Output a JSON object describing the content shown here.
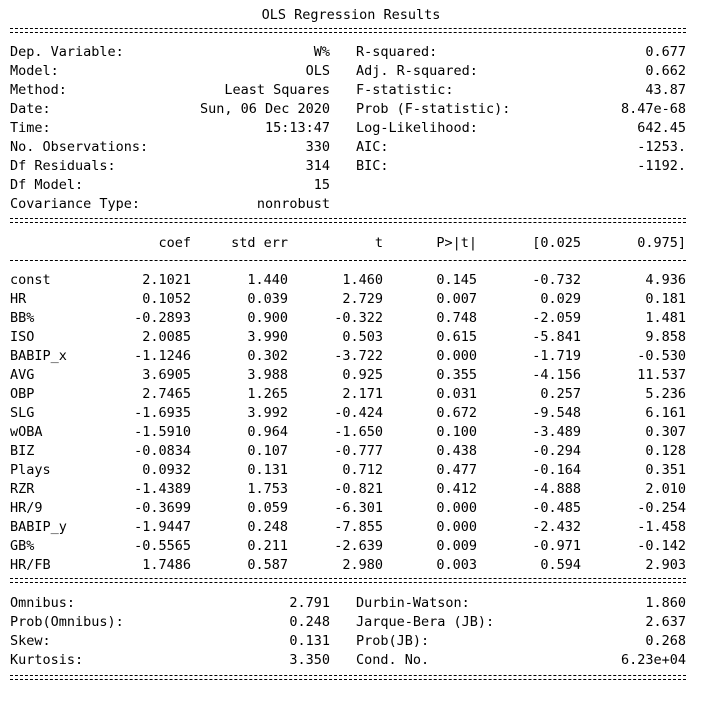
{
  "title": "OLS Regression Results",
  "summary_left": [
    {
      "label": "Dep. Variable:",
      "value": "W%"
    },
    {
      "label": "Model:",
      "value": "OLS"
    },
    {
      "label": "Method:",
      "value": "Least Squares"
    },
    {
      "label": "Date:",
      "value": "Sun, 06 Dec 2020"
    },
    {
      "label": "Time:",
      "value": "15:13:47"
    },
    {
      "label": "No. Observations:",
      "value": "330"
    },
    {
      "label": "Df Residuals:",
      "value": "314"
    },
    {
      "label": "Df Model:",
      "value": "15"
    },
    {
      "label": "Covariance Type:",
      "value": "nonrobust"
    }
  ],
  "summary_right": [
    {
      "label": "R-squared:",
      "value": "0.677"
    },
    {
      "label": "Adj. R-squared:",
      "value": "0.662"
    },
    {
      "label": "F-statistic:",
      "value": "43.87"
    },
    {
      "label": "Prob (F-statistic):",
      "value": "8.47e-68"
    },
    {
      "label": "Log-Likelihood:",
      "value": "642.45"
    },
    {
      "label": "AIC:",
      "value": "-1253."
    },
    {
      "label": "BIC:",
      "value": "-1192."
    }
  ],
  "coef_headers": [
    "coef",
    "std err",
    "t",
    "P>|t|",
    "[0.025",
    "0.975]"
  ],
  "coef_rows": [
    {
      "name": "const",
      "cells": [
        "2.1021",
        "1.440",
        "1.460",
        "0.145",
        "-0.732",
        "4.936"
      ]
    },
    {
      "name": "HR",
      "cells": [
        "0.1052",
        "0.039",
        "2.729",
        "0.007",
        "0.029",
        "0.181"
      ]
    },
    {
      "name": "BB%",
      "cells": [
        "-0.2893",
        "0.900",
        "-0.322",
        "0.748",
        "-2.059",
        "1.481"
      ]
    },
    {
      "name": "ISO",
      "cells": [
        "2.0085",
        "3.990",
        "0.503",
        "0.615",
        "-5.841",
        "9.858"
      ]
    },
    {
      "name": "BABIP_x",
      "cells": [
        "-1.1246",
        "0.302",
        "-3.722",
        "0.000",
        "-1.719",
        "-0.530"
      ]
    },
    {
      "name": "AVG",
      "cells": [
        "3.6905",
        "3.988",
        "0.925",
        "0.355",
        "-4.156",
        "11.537"
      ]
    },
    {
      "name": "OBP",
      "cells": [
        "2.7465",
        "1.265",
        "2.171",
        "0.031",
        "0.257",
        "5.236"
      ]
    },
    {
      "name": "SLG",
      "cells": [
        "-1.6935",
        "3.992",
        "-0.424",
        "0.672",
        "-9.548",
        "6.161"
      ]
    },
    {
      "name": "wOBA",
      "cells": [
        "-1.5910",
        "0.964",
        "-1.650",
        "0.100",
        "-3.489",
        "0.307"
      ]
    },
    {
      "name": "BIZ",
      "cells": [
        "-0.0834",
        "0.107",
        "-0.777",
        "0.438",
        "-0.294",
        "0.128"
      ]
    },
    {
      "name": "Plays",
      "cells": [
        "0.0932",
        "0.131",
        "0.712",
        "0.477",
        "-0.164",
        "0.351"
      ]
    },
    {
      "name": "RZR",
      "cells": [
        "-1.4389",
        "1.753",
        "-0.821",
        "0.412",
        "-4.888",
        "2.010"
      ]
    },
    {
      "name": "HR/9",
      "cells": [
        "-0.3699",
        "0.059",
        "-6.301",
        "0.000",
        "-0.485",
        "-0.254"
      ]
    },
    {
      "name": "BABIP_y",
      "cells": [
        "-1.9447",
        "0.248",
        "-7.855",
        "0.000",
        "-2.432",
        "-1.458"
      ]
    },
    {
      "name": "GB%",
      "cells": [
        "-0.5565",
        "0.211",
        "-2.639",
        "0.009",
        "-0.971",
        "-0.142"
      ]
    },
    {
      "name": "HR/FB",
      "cells": [
        "1.7486",
        "0.587",
        "2.980",
        "0.003",
        "0.594",
        "2.903"
      ]
    }
  ],
  "diag_left": [
    {
      "label": "Omnibus:",
      "value": "2.791"
    },
    {
      "label": "Prob(Omnibus):",
      "value": "0.248"
    },
    {
      "label": "Skew:",
      "value": "0.131"
    },
    {
      "label": "Kurtosis:",
      "value": "3.350"
    }
  ],
  "diag_right": [
    {
      "label": "Durbin-Watson:",
      "value": "1.860"
    },
    {
      "label": "Jarque-Bera (JB):",
      "value": "2.637"
    },
    {
      "label": "Prob(JB):",
      "value": "0.268"
    },
    {
      "label": "Cond. No.",
      "value": "6.23e+04"
    }
  ]
}
